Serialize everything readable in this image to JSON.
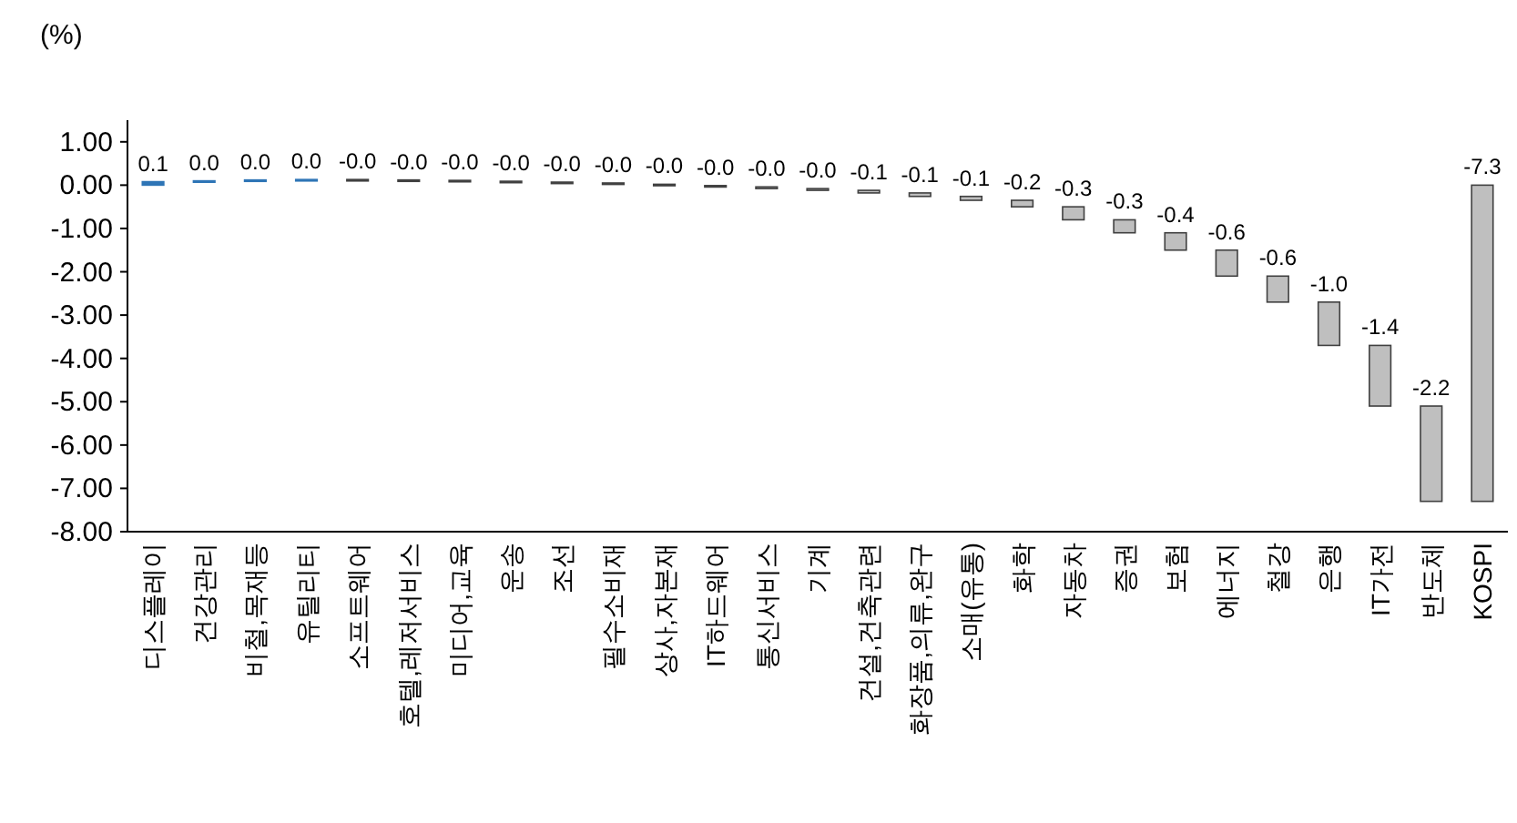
{
  "chart_data": {
    "type": "bar",
    "ylabel": "(%)",
    "categories": [
      "디스플레이",
      "건강관리",
      "비철,목재등",
      "유틸리티",
      "소프트웨어",
      "호텔,레저서비스",
      "미디어,교육",
      "운송",
      "조선",
      "필수소비재",
      "상사,자본재",
      "IT하드웨어",
      "통신서비스",
      "기계",
      "건설,건축관련",
      "화장품,의류,완구",
      "소매(유통)",
      "화학",
      "자동차",
      "증권",
      "보험",
      "에너지",
      "철강",
      "은행",
      "IT가전",
      "반도체",
      "KOSPI"
    ],
    "values": [
      0.08,
      0.02,
      0.02,
      0.01,
      -0.01,
      -0.01,
      -0.02,
      -0.02,
      -0.02,
      -0.03,
      -0.03,
      -0.03,
      -0.04,
      -0.04,
      -0.06,
      -0.08,
      -0.09,
      -0.15,
      -0.3,
      -0.3,
      -0.4,
      -0.6,
      -0.6,
      -1.0,
      -1.4,
      -2.2,
      -7.3
    ],
    "base": [
      0,
      0.08,
      0.1,
      0.12,
      0.13,
      0.12,
      0.11,
      0.09,
      0.07,
      0.05,
      0.02,
      -0.01,
      -0.04,
      -0.08,
      -0.12,
      -0.18,
      -0.26,
      -0.35,
      -0.5,
      -0.8,
      -1.1,
      -1.5,
      -2.1,
      -2.7,
      -3.7,
      -5.1,
      0
    ],
    "value_labels": [
      "0.1",
      "0.0",
      "0.0",
      "0.0",
      "-0.0",
      "-0.0",
      "-0.0",
      "-0.0",
      "-0.0",
      "-0.0",
      "-0.0",
      "-0.0",
      "-0.0",
      "-0.0",
      "-0.1",
      "-0.1",
      "-0.1",
      "-0.2",
      "-0.3",
      "-0.3",
      "-0.4",
      "-0.6",
      "-0.6",
      "-1.0",
      "-1.4",
      "-2.2",
      "-7.3"
    ],
    "colors": [
      "#2e75b6",
      "#2e75b6",
      "#2e75b6",
      "#2e75b6",
      "#bfbfbf",
      "#bfbfbf",
      "#bfbfbf",
      "#bfbfbf",
      "#bfbfbf",
      "#bfbfbf",
      "#bfbfbf",
      "#bfbfbf",
      "#bfbfbf",
      "#bfbfbf",
      "#bfbfbf",
      "#bfbfbf",
      "#bfbfbf",
      "#bfbfbf",
      "#bfbfbf",
      "#bfbfbf",
      "#bfbfbf",
      "#bfbfbf",
      "#bfbfbf",
      "#bfbfbf",
      "#bfbfbf",
      "#bfbfbf",
      "#bfbfbf"
    ],
    "ylim": [
      -8,
      1.5
    ],
    "yticks": [
      {
        "value": 1,
        "label": "1.00"
      },
      {
        "value": 0,
        "label": "0.00"
      },
      {
        "value": -1,
        "label": "-1.00"
      },
      {
        "value": -2,
        "label": "-2.00"
      },
      {
        "value": -3,
        "label": "-3.00"
      },
      {
        "value": -4,
        "label": "-4.00"
      },
      {
        "value": -5,
        "label": "-5.00"
      },
      {
        "value": -6,
        "label": "-6.00"
      },
      {
        "value": -7,
        "label": "-7.00"
      },
      {
        "value": -8,
        "label": "-8.00"
      }
    ],
    "grid": false
  }
}
